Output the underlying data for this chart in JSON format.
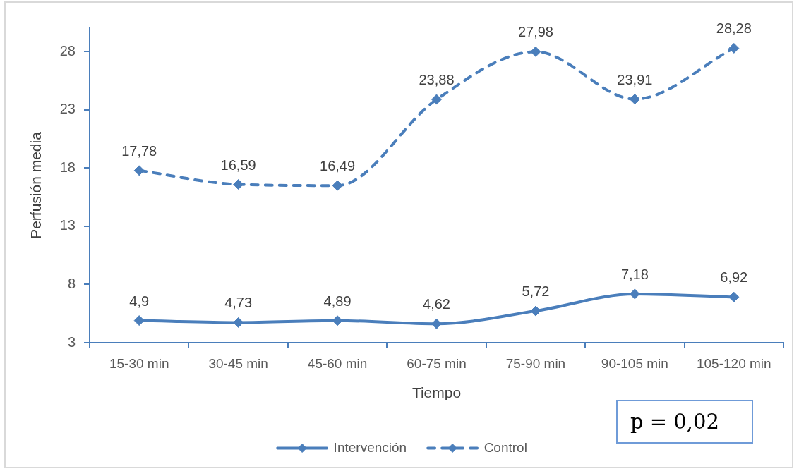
{
  "chart_data": {
    "type": "line",
    "xlabel": "Tiempo",
    "ylabel": "Perfusión media",
    "categories": [
      "15-30 min",
      "30-45 min",
      "45-60 min",
      "60-75 min",
      "75-90 min",
      "90-105 min",
      "105-120 min"
    ],
    "series": [
      {
        "name": "Intervención",
        "color": "#4a7ebb",
        "line_style": "solid",
        "values": [
          4.9,
          4.73,
          4.89,
          4.62,
          5.72,
          7.18,
          6.92
        ],
        "value_labels": [
          "4,9",
          "4,73",
          "4,89",
          "4,62",
          "5,72",
          "7,18",
          "6,92"
        ]
      },
      {
        "name": "Control",
        "color": "#4a7ebb",
        "line_style": "dashed",
        "values": [
          17.78,
          16.59,
          16.49,
          23.88,
          27.98,
          23.91,
          28.28
        ],
        "value_labels": [
          "17,78",
          "16,59",
          "16,49",
          "23,88",
          "27,98",
          "23,91",
          "28,28"
        ]
      }
    ],
    "ylim": [
      3,
      30
    ],
    "yticks": [
      3,
      8,
      13,
      18,
      23,
      28
    ],
    "marker": "diamond",
    "legend": "bottom",
    "annotations": [
      "p = 0,02"
    ]
  }
}
